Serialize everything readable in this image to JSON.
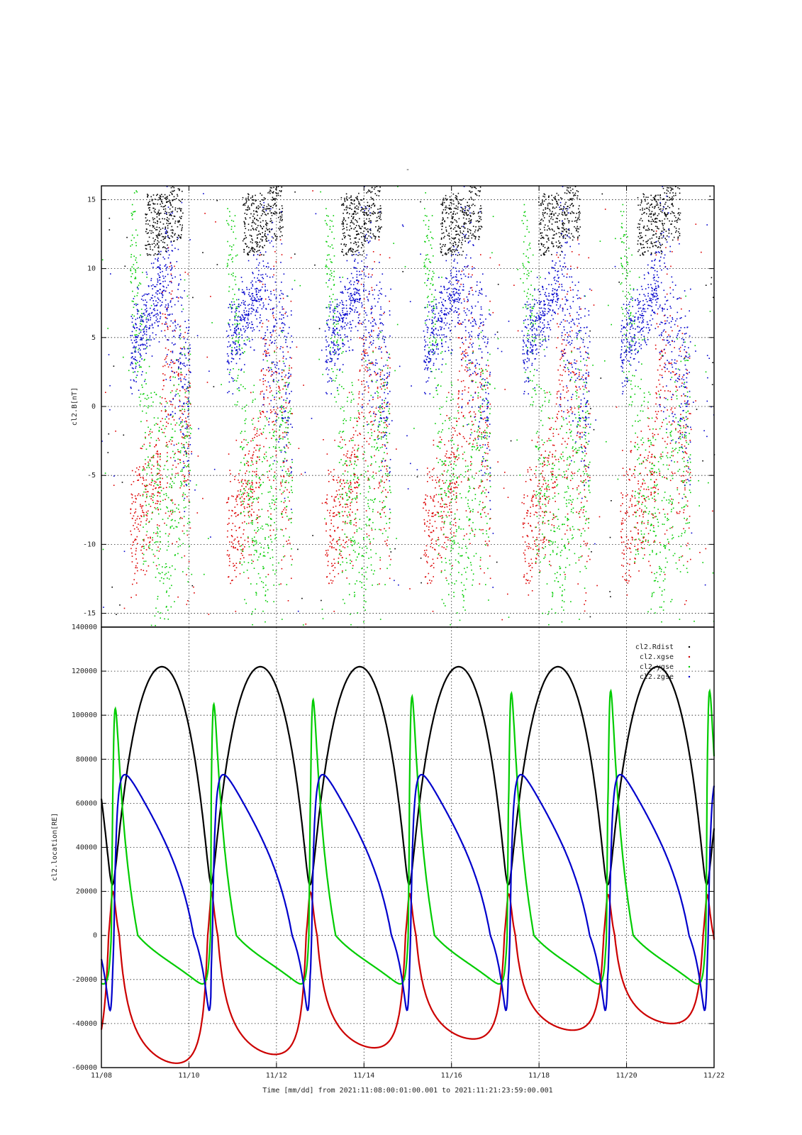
{
  "figure": {
    "title": "-",
    "xlabel": "Time [mm/dd]  from 2021:11:08:00:01:00.001  to  2021:11:21:23:59:00.001"
  },
  "chart_data": [
    {
      "type": "scatter",
      "ylabel": "cl2.B[nT]",
      "ylim": [
        -16,
        16
      ],
      "xlim_days": [
        0,
        14
      ],
      "y_ticks": [
        -15,
        -10,
        -5,
        0,
        5,
        10,
        15
      ],
      "y_tick_labels": [
        "-15",
        "-10",
        "-5",
        "0",
        "5",
        "10",
        "15"
      ],
      "grid": true,
      "legend": "none",
      "series": [
        {
          "color": "#000000"
        },
        {
          "color": "#dd0000"
        },
        {
          "color": "#00cc00"
        },
        {
          "color": "#0000cc"
        }
      ]
    },
    {
      "type": "line",
      "ylabel": "cl2.location[RE]",
      "ylim": [
        -60000,
        140000
      ],
      "xlim_days": [
        0,
        14
      ],
      "x_ticks": [
        0,
        2,
        4,
        6,
        8,
        10,
        12,
        14
      ],
      "x_tick_labels": [
        "11/08",
        "11/10",
        "11/12",
        "11/14",
        "11/16",
        "11/18",
        "11/20",
        "11/22"
      ],
      "y_ticks": [
        -60000,
        -40000,
        -20000,
        0,
        20000,
        40000,
        60000,
        80000,
        100000,
        120000,
        140000
      ],
      "y_tick_labels": [
        "-60000",
        "-40000",
        "-20000",
        "0",
        "20000",
        "40000",
        "60000",
        "80000",
        "100000",
        "120000",
        "140000"
      ],
      "grid": true,
      "legend": "top-right",
      "series": [
        {
          "name": "cl2.Rdist",
          "color": "#000000",
          "peaks": [
            122000,
            122000,
            122000,
            122000,
            122000,
            122000
          ],
          "min": 23000
        },
        {
          "name": "cl2.xgse",
          "color": "#cc0000",
          "max": [
            20000,
            20000,
            19500,
            19000,
            18800,
            18500
          ],
          "min": [
            -58000,
            -54000,
            -51000,
            -47000,
            -43000,
            -40000
          ]
        },
        {
          "name": "cl2.ygse",
          "color": "#00cc00",
          "max": [
            103000,
            105000,
            107000,
            108500,
            110000,
            111000
          ],
          "min": -22000
        },
        {
          "name": "cl2.zgse",
          "color": "#0000cc",
          "max": 73000,
          "min": -34000
        }
      ],
      "orbit_period_days": 2.265,
      "perigee_days": [
        0.25,
        2.5,
        4.77,
        7.03,
        9.3,
        11.57,
        13.83
      ]
    }
  ]
}
